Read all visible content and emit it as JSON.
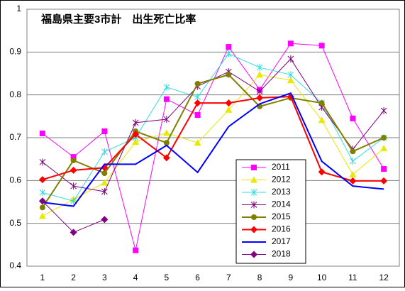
{
  "chart_data": {
    "type": "line",
    "title": "福島県主要3市計　出生死亡比率",
    "categories": [
      1,
      2,
      3,
      4,
      5,
      6,
      7,
      8,
      9,
      10,
      11,
      12
    ],
    "ylim": [
      0.4,
      1
    ],
    "yticks": [
      0.4,
      0.5,
      0.6,
      0.7,
      0.8,
      0.9,
      1
    ],
    "grid": true,
    "legend": "lower right",
    "series": [
      {
        "name": "2011",
        "color": "#ff00ff",
        "marker": "square",
        "line_width": 1,
        "values": [
          0.71,
          0.655,
          0.715,
          0.437,
          0.79,
          0.753,
          0.912,
          0.812,
          0.92,
          0.915,
          0.745,
          0.627
        ]
      },
      {
        "name": "2012",
        "color": "#e8e800",
        "marker": "triangle",
        "line_width": 1,
        "values": [
          0.517,
          0.556,
          0.595,
          0.69,
          0.711,
          0.688,
          0.765,
          0.847,
          0.834,
          0.741,
          0.614,
          0.675
        ]
      },
      {
        "name": "2013",
        "color": "#33dddd",
        "marker": "star",
        "line_width": 1,
        "values": [
          0.572,
          0.552,
          0.667,
          0.7,
          0.818,
          0.795,
          0.896,
          0.864,
          0.847,
          0.781,
          0.645,
          0.7
        ]
      },
      {
        "name": "2014",
        "color": "#800080",
        "marker": "star",
        "line_width": 1,
        "values": [
          0.643,
          0.587,
          0.574,
          0.735,
          0.743,
          0.82,
          0.854,
          0.808,
          0.884,
          0.771,
          0.673,
          0.763
        ]
      },
      {
        "name": "2015",
        "color": "#808000",
        "marker": "circle",
        "line_width": 2,
        "values": [
          0.537,
          0.647,
          0.617,
          0.715,
          0.688,
          0.826,
          0.847,
          0.773,
          0.793,
          0.781,
          0.668,
          0.7
        ]
      },
      {
        "name": "2016",
        "color": "#ff0000",
        "marker": "diamond",
        "line_width": 2,
        "values": [
          0.602,
          0.624,
          0.63,
          0.708,
          0.653,
          0.781,
          0.781,
          0.793,
          0.796,
          0.62,
          0.599,
          0.599
        ]
      },
      {
        "name": "2017",
        "color": "#0000ff",
        "marker": "none",
        "line_width": 2,
        "values": [
          0.549,
          0.54,
          0.638,
          0.638,
          0.682,
          0.619,
          0.726,
          0.779,
          0.804,
          0.645,
          0.587,
          0.58
        ]
      },
      {
        "name": "2018",
        "color": "#800080",
        "marker": "diamond",
        "line_width": 1,
        "values": [
          0.552,
          0.479,
          0.509,
          null,
          null,
          null,
          null,
          null,
          null,
          null,
          null,
          null
        ]
      }
    ]
  }
}
